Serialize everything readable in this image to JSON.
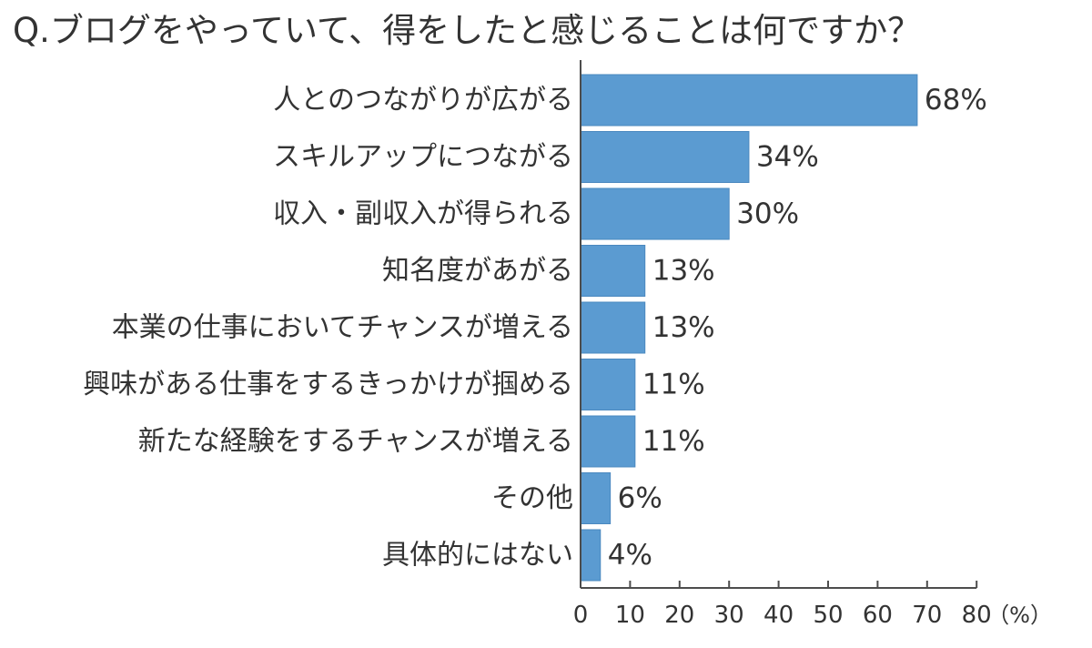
{
  "chart_data": {
    "type": "bar",
    "orientation": "horizontal",
    "title": "Q.ブログをやっていて、得をしたと感じることは何ですか？",
    "categories": [
      "人とのつながりが広がる",
      "スキルアップにつながる",
      "収入・副収入が得られる",
      "知名度があがる",
      "本業の仕事においてチャンスが増える",
      "興味がある仕事をするきっかけが掴める",
      "新たな経験をするチャンスが増える",
      "その他",
      "具体的にはない"
    ],
    "values": [
      68,
      34,
      30,
      13,
      13,
      11,
      11,
      6,
      4
    ],
    "value_labels": [
      "68%",
      "34%",
      "30%",
      "13%",
      "13%",
      "11%",
      "11%",
      "6%",
      "4%"
    ],
    "xlim": [
      0,
      80
    ],
    "xticks": [
      0,
      10,
      20,
      30,
      40,
      50,
      60,
      70,
      80
    ],
    "xunit": "（%）",
    "grid": false,
    "colors": {
      "bar": "#5b9bd1",
      "bar_edge": "#4a88bf",
      "axis": "#4d4d4d",
      "text": "#333333"
    }
  }
}
